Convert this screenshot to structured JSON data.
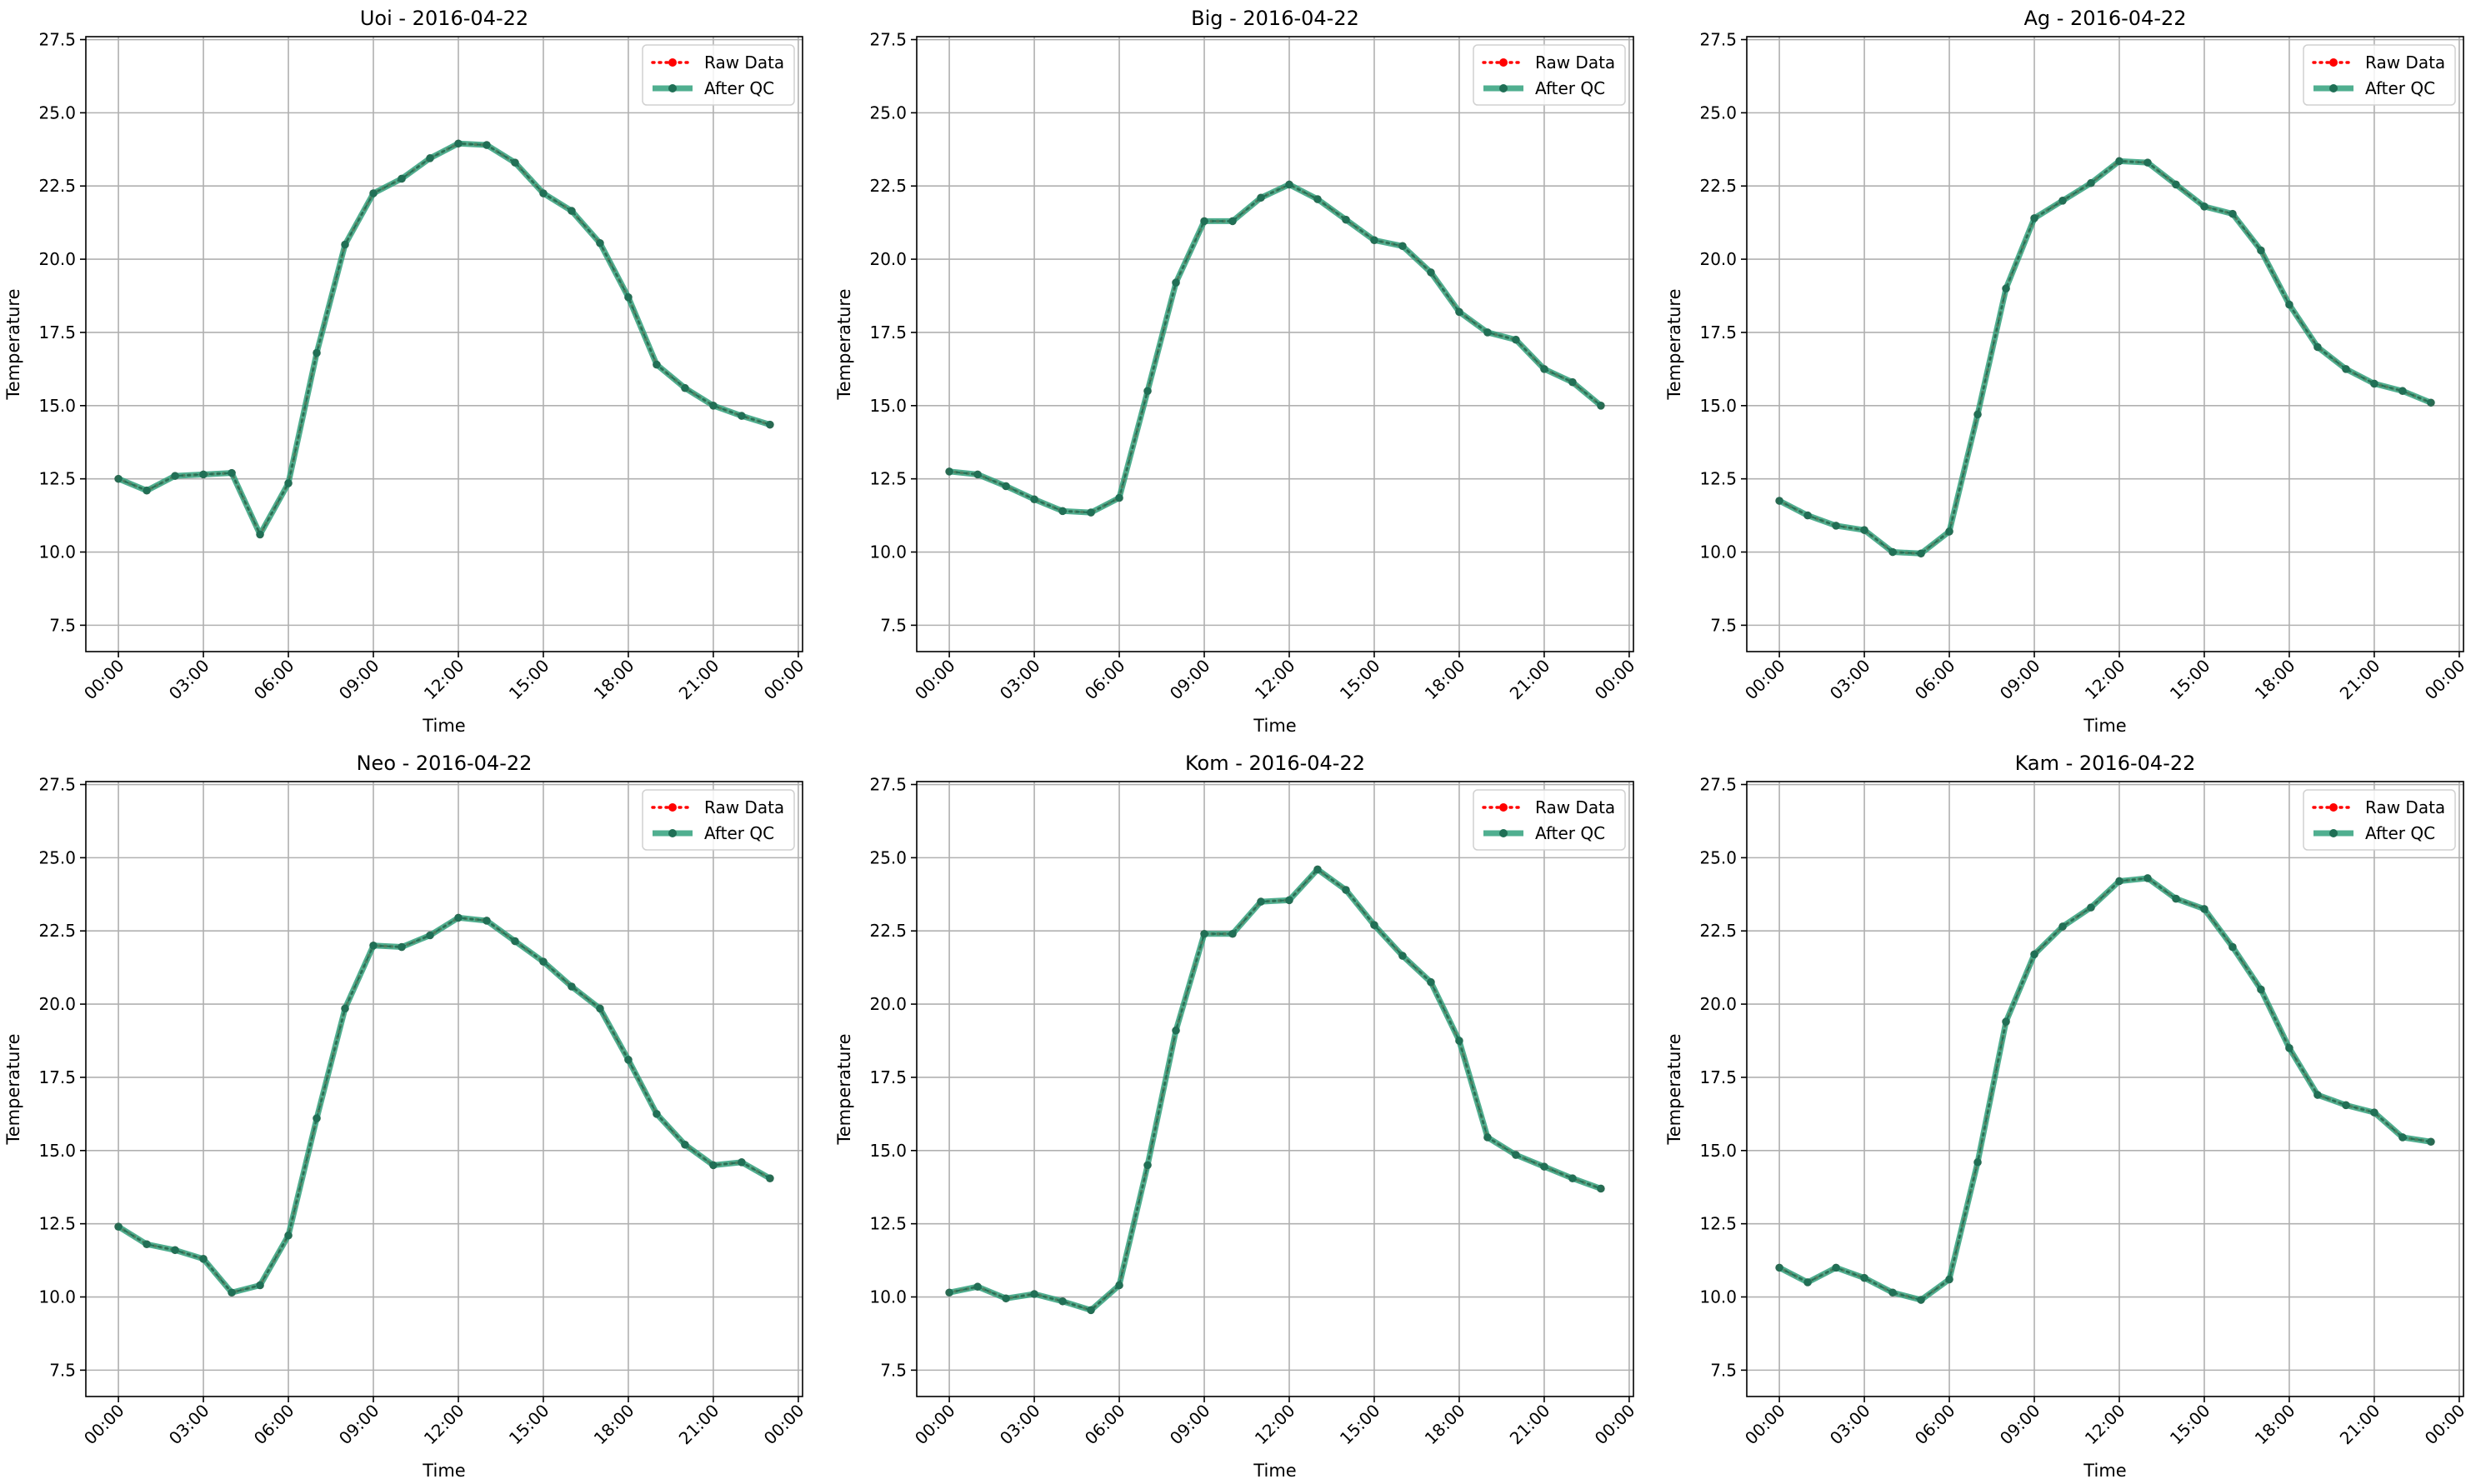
{
  "chart_data": [
    {
      "type": "line",
      "title": "Uoi - 2016-04-22",
      "xlabel": "Time",
      "ylabel": "Temperature",
      "ylim": [
        6.6,
        27.6
      ],
      "yticks": [
        "7.5",
        "10.0",
        "12.5",
        "15.0",
        "17.5",
        "20.0",
        "22.5",
        "25.0",
        "27.5"
      ],
      "xticks": [
        "00:00",
        "03:00",
        "06:00",
        "09:00",
        "12:00",
        "15:00",
        "18:00",
        "21:00",
        "00:00"
      ],
      "xlim_hours": [
        -1.15,
        24.15
      ],
      "grid": true,
      "legend_position": "upper right",
      "x_hours": [
        0,
        1,
        2,
        3,
        4,
        5,
        6,
        7,
        8,
        9,
        10,
        11,
        12,
        13,
        14,
        15,
        16,
        17,
        18,
        19,
        20,
        21,
        22,
        23
      ],
      "series": [
        {
          "name": "Raw Data",
          "values": [
            12.5,
            12.1,
            12.6,
            12.65,
            12.7,
            10.6,
            12.35,
            16.8,
            20.5,
            22.25,
            22.75,
            23.45,
            23.95,
            23.9,
            23.3,
            22.25,
            21.65,
            20.55,
            18.7,
            16.4,
            15.6,
            15.0,
            14.65,
            14.35
          ]
        },
        {
          "name": "After QC",
          "values": [
            12.5,
            12.1,
            12.6,
            12.65,
            12.7,
            10.6,
            12.35,
            16.8,
            20.5,
            22.25,
            22.75,
            23.45,
            23.95,
            23.9,
            23.3,
            22.25,
            21.65,
            20.55,
            18.7,
            16.4,
            15.6,
            15.0,
            14.65,
            14.35
          ]
        }
      ]
    },
    {
      "type": "line",
      "title": "Big - 2016-04-22",
      "xlabel": "Time",
      "ylabel": "Temperature",
      "ylim": [
        6.6,
        27.6
      ],
      "yticks": [
        "7.5",
        "10.0",
        "12.5",
        "15.0",
        "17.5",
        "20.0",
        "22.5",
        "25.0",
        "27.5"
      ],
      "xticks": [
        "00:00",
        "03:00",
        "06:00",
        "09:00",
        "12:00",
        "15:00",
        "18:00",
        "21:00",
        "00:00"
      ],
      "xlim_hours": [
        -1.15,
        24.15
      ],
      "grid": true,
      "legend_position": "upper right",
      "x_hours": [
        0,
        1,
        2,
        3,
        4,
        5,
        6,
        7,
        8,
        9,
        10,
        11,
        12,
        13,
        14,
        15,
        16,
        17,
        18,
        19,
        20,
        21,
        22,
        23
      ],
      "series": [
        {
          "name": "Raw Data",
          "values": [
            12.75,
            12.65,
            12.25,
            11.8,
            11.4,
            11.35,
            11.85,
            15.5,
            19.2,
            21.3,
            21.3,
            22.1,
            22.55,
            22.05,
            21.35,
            20.65,
            20.45,
            19.55,
            18.2,
            17.5,
            17.25,
            16.25,
            15.8,
            15.0
          ]
        },
        {
          "name": "After QC",
          "values": [
            12.75,
            12.65,
            12.25,
            11.8,
            11.4,
            11.35,
            11.85,
            15.5,
            19.2,
            21.3,
            21.3,
            22.1,
            22.55,
            22.05,
            21.35,
            20.65,
            20.45,
            19.55,
            18.2,
            17.5,
            17.25,
            16.25,
            15.8,
            15.0
          ]
        }
      ]
    },
    {
      "type": "line",
      "title": "Ag - 2016-04-22",
      "xlabel": "Time",
      "ylabel": "Temperature",
      "ylim": [
        6.6,
        27.6
      ],
      "yticks": [
        "7.5",
        "10.0",
        "12.5",
        "15.0",
        "17.5",
        "20.0",
        "22.5",
        "25.0",
        "27.5"
      ],
      "xticks": [
        "00:00",
        "03:00",
        "06:00",
        "09:00",
        "12:00",
        "15:00",
        "18:00",
        "21:00",
        "00:00"
      ],
      "xlim_hours": [
        -1.15,
        24.15
      ],
      "grid": true,
      "legend_position": "upper right",
      "x_hours": [
        0,
        1,
        2,
        3,
        4,
        5,
        6,
        7,
        8,
        9,
        10,
        11,
        12,
        13,
        14,
        15,
        16,
        17,
        18,
        19,
        20,
        21,
        22,
        23
      ],
      "series": [
        {
          "name": "Raw Data",
          "values": [
            11.75,
            11.25,
            10.9,
            10.75,
            10.0,
            9.95,
            10.7,
            14.7,
            19.0,
            21.4,
            22.0,
            22.6,
            23.35,
            23.3,
            22.55,
            21.8,
            21.55,
            20.3,
            18.45,
            17.0,
            16.25,
            15.75,
            15.5,
            15.1
          ]
        },
        {
          "name": "After QC",
          "values": [
            11.75,
            11.25,
            10.9,
            10.75,
            10.0,
            9.95,
            10.7,
            14.7,
            19.0,
            21.4,
            22.0,
            22.6,
            23.35,
            23.3,
            22.55,
            21.8,
            21.55,
            20.3,
            18.45,
            17.0,
            16.25,
            15.75,
            15.5,
            15.1
          ]
        }
      ]
    },
    {
      "type": "line",
      "title": "Neo - 2016-04-22",
      "xlabel": "Time",
      "ylabel": "Temperature",
      "ylim": [
        6.6,
        27.6
      ],
      "yticks": [
        "7.5",
        "10.0",
        "12.5",
        "15.0",
        "17.5",
        "20.0",
        "22.5",
        "25.0",
        "27.5"
      ],
      "xticks": [
        "00:00",
        "03:00",
        "06:00",
        "09:00",
        "12:00",
        "15:00",
        "18:00",
        "21:00",
        "00:00"
      ],
      "xlim_hours": [
        -1.15,
        24.15
      ],
      "grid": true,
      "legend_position": "upper right",
      "x_hours": [
        0,
        1,
        2,
        3,
        4,
        5,
        6,
        7,
        8,
        9,
        10,
        11,
        12,
        13,
        14,
        15,
        16,
        17,
        18,
        19,
        20,
        21,
        22,
        23
      ],
      "series": [
        {
          "name": "Raw Data",
          "values": [
            12.4,
            11.8,
            11.6,
            11.3,
            10.15,
            10.4,
            12.1,
            16.1,
            19.85,
            22.0,
            21.95,
            22.35,
            22.95,
            22.85,
            22.15,
            21.45,
            20.6,
            19.85,
            18.1,
            16.25,
            15.2,
            14.5,
            14.6,
            14.05
          ]
        },
        {
          "name": "After QC",
          "values": [
            12.4,
            11.8,
            11.6,
            11.3,
            10.15,
            10.4,
            12.1,
            16.1,
            19.85,
            22.0,
            21.95,
            22.35,
            22.95,
            22.85,
            22.15,
            21.45,
            20.6,
            19.85,
            18.1,
            16.25,
            15.2,
            14.5,
            14.6,
            14.05
          ]
        }
      ]
    },
    {
      "type": "line",
      "title": "Kom - 2016-04-22",
      "xlabel": "Time",
      "ylabel": "Temperature",
      "ylim": [
        6.6,
        27.6
      ],
      "yticks": [
        "7.5",
        "10.0",
        "12.5",
        "15.0",
        "17.5",
        "20.0",
        "22.5",
        "25.0",
        "27.5"
      ],
      "xticks": [
        "00:00",
        "03:00",
        "06:00",
        "09:00",
        "12:00",
        "15:00",
        "18:00",
        "21:00",
        "00:00"
      ],
      "xlim_hours": [
        -1.15,
        24.15
      ],
      "grid": true,
      "legend_position": "upper right",
      "x_hours": [
        0,
        1,
        2,
        3,
        4,
        5,
        6,
        7,
        8,
        9,
        10,
        11,
        12,
        13,
        14,
        15,
        16,
        17,
        18,
        19,
        20,
        21,
        22,
        23
      ],
      "series": [
        {
          "name": "Raw Data",
          "values": [
            10.15,
            10.35,
            9.95,
            10.1,
            9.85,
            9.55,
            10.4,
            14.5,
            19.1,
            22.4,
            22.4,
            23.5,
            23.55,
            24.6,
            23.9,
            22.7,
            21.65,
            20.75,
            18.75,
            15.45,
            14.85,
            14.45,
            14.05,
            13.7
          ]
        },
        {
          "name": "After QC",
          "values": [
            10.15,
            10.35,
            9.95,
            10.1,
            9.85,
            9.55,
            10.4,
            14.5,
            19.1,
            22.4,
            22.4,
            23.5,
            23.55,
            24.6,
            23.9,
            22.7,
            21.65,
            20.75,
            18.75,
            15.45,
            14.85,
            14.45,
            14.05,
            13.7
          ]
        }
      ]
    },
    {
      "type": "line",
      "title": "Kam - 2016-04-22",
      "xlabel": "Time",
      "ylabel": "Temperature",
      "ylim": [
        6.6,
        27.6
      ],
      "yticks": [
        "7.5",
        "10.0",
        "12.5",
        "15.0",
        "17.5",
        "20.0",
        "22.5",
        "25.0",
        "27.5"
      ],
      "xticks": [
        "00:00",
        "03:00",
        "06:00",
        "09:00",
        "12:00",
        "15:00",
        "18:00",
        "21:00",
        "00:00"
      ],
      "xlim_hours": [
        -1.15,
        24.15
      ],
      "grid": true,
      "legend_position": "upper right",
      "x_hours": [
        0,
        1,
        2,
        3,
        4,
        5,
        6,
        7,
        8,
        9,
        10,
        11,
        12,
        13,
        14,
        15,
        16,
        17,
        18,
        19,
        20,
        21,
        22,
        23
      ],
      "series": [
        {
          "name": "Raw Data",
          "values": [
            11.0,
            10.5,
            11.0,
            10.65,
            10.15,
            9.9,
            10.6,
            14.6,
            19.4,
            21.7,
            22.65,
            23.3,
            24.2,
            24.3,
            23.6,
            23.25,
            21.95,
            20.5,
            18.5,
            16.9,
            16.55,
            16.3,
            15.45,
            15.3
          ]
        },
        {
          "name": "After QC",
          "values": [
            11.0,
            10.5,
            11.0,
            10.65,
            10.15,
            9.9,
            10.6,
            14.6,
            19.4,
            21.7,
            22.65,
            23.3,
            24.2,
            24.3,
            23.6,
            23.25,
            21.95,
            20.5,
            18.5,
            16.9,
            16.55,
            16.3,
            15.45,
            15.3
          ]
        }
      ]
    }
  ],
  "style": {
    "raw_color": "#ff0000",
    "qc_line_color": "#2a9d78",
    "qc_marker_color": "#1f6f55",
    "grid_color": "#b0b0b0",
    "axes_color": "#000000"
  }
}
